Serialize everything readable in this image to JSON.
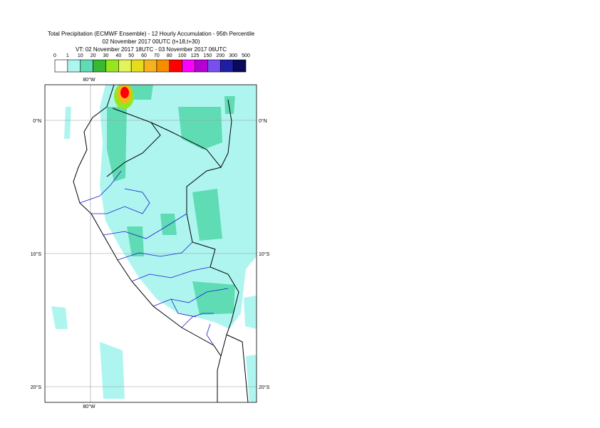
{
  "title": [
    "Total Precipitation (ECMWF Ensemble) - 12 Hourly Accumulation - 95th Percentile",
    "02 November 2017 00UTC (t+18,t+30)",
    "VT: 02 November 2017 18UTC - 03 November 2017 06UTC"
  ],
  "legend": {
    "levels": [
      "0",
      "1",
      "10",
      "20",
      "30",
      "40",
      "50",
      "60",
      "70",
      "80",
      "100",
      "125",
      "150",
      "200",
      "300",
      "500"
    ],
    "colors": [
      "#ffffff",
      "#aef5f0",
      "#5fdcb4",
      "#37b932",
      "#96e61e",
      "#e1f55a",
      "#e6dc1e",
      "#f5b41e",
      "#fa8c00",
      "#ff0000",
      "#ff00ff",
      "#b400d2",
      "#7850f0",
      "#1e1ea5",
      "#0a0a5a"
    ]
  },
  "map": {
    "lon_labels": [
      "80°W"
    ],
    "lat_labels": [
      "0°N",
      "10°S",
      "20°S"
    ]
  }
}
